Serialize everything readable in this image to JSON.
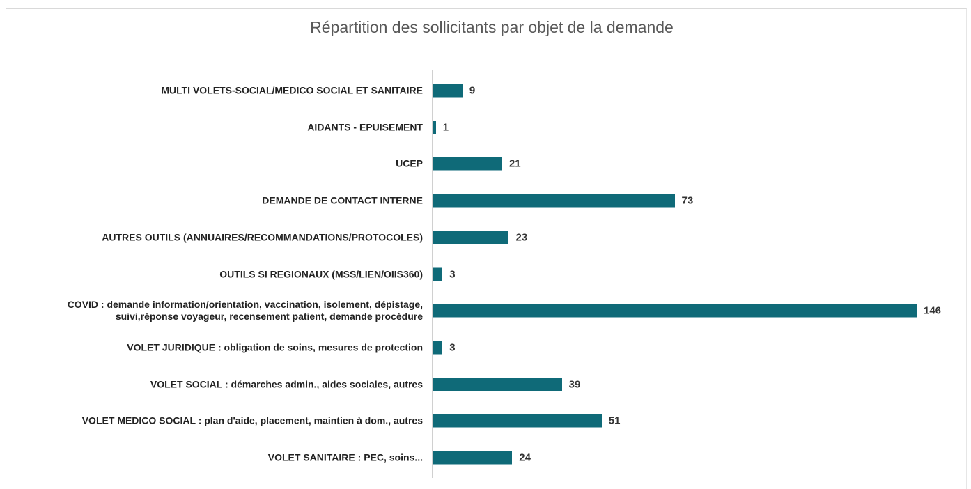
{
  "chart_data": {
    "type": "bar",
    "orientation": "horizontal",
    "title": "Répartition des sollicitants par objet de la demande",
    "categories": [
      "MULTI VOLETS-SOCIAL/MEDICO SOCIAL ET SANITAIRE",
      "AIDANTS - EPUISEMENT",
      "UCEP",
      "DEMANDE DE CONTACT INTERNE",
      "AUTRES OUTILS (ANNUAIRES/RECOMMANDATIONS/PROTOCOLES)",
      "OUTILS SI REGIONAUX (MSS/LIEN/OIIS360)",
      "COVID : demande information/orientation, vaccination, isolement, dépistage,\nsuivi,réponse voyageur, recensement patient, demande procédure",
      "VOLET JURIDIQUE : obligation de soins, mesures de protection",
      "VOLET SOCIAL : démarches admin., aides sociales, autres",
      "VOLET MEDICO SOCIAL  : plan d'aide, placement, maintien à dom., autres",
      "VOLET SANITAIRE : PEC, soins..."
    ],
    "values": [
      9,
      1,
      21,
      73,
      23,
      3,
      146,
      3,
      39,
      51,
      24
    ],
    "color": "#0f6a78"
  }
}
